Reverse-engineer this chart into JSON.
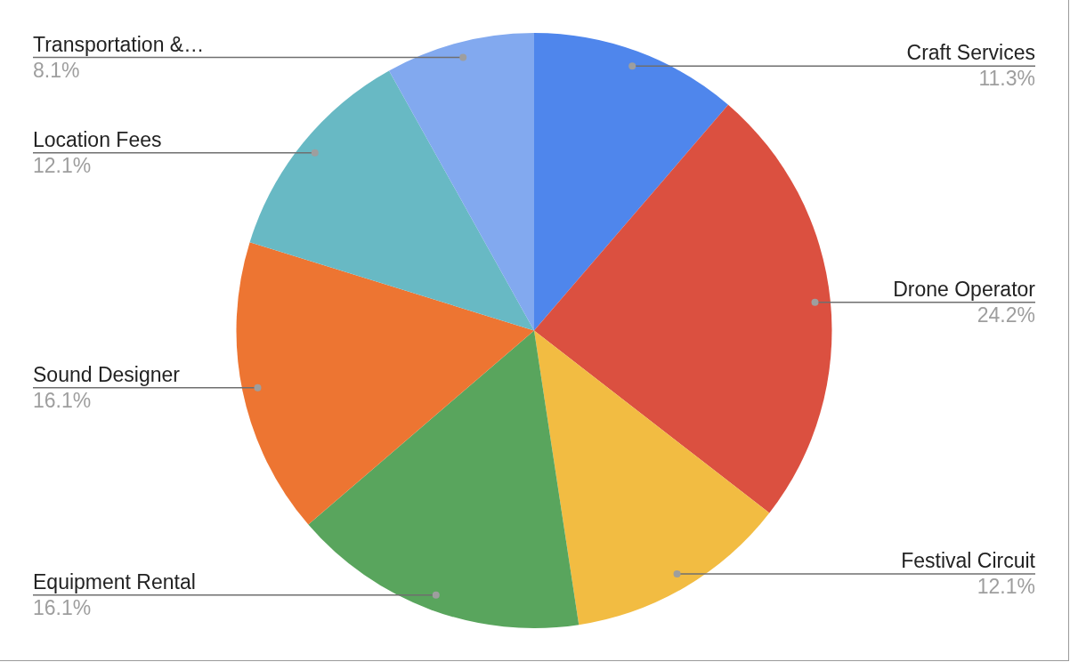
{
  "chart_data": {
    "type": "pie",
    "categories": [
      "Craft Services",
      "Drone Operator",
      "Festival Circuit",
      "Equipment Rental",
      "Sound Designer",
      "Location Fees",
      "Transportation &…"
    ],
    "values": [
      11.3,
      24.2,
      12.1,
      16.1,
      16.1,
      12.1,
      8.1
    ],
    "colors": [
      "#4f86ec",
      "#db5040",
      "#f2bc42",
      "#59a55d",
      "#ed7532",
      "#68b9c4",
      "#82a9ef"
    ],
    "value_labels": [
      "11.3%",
      "24.2%",
      "12.1%",
      "16.1%",
      "16.1%",
      "12.1%",
      "8.1%"
    ]
  }
}
